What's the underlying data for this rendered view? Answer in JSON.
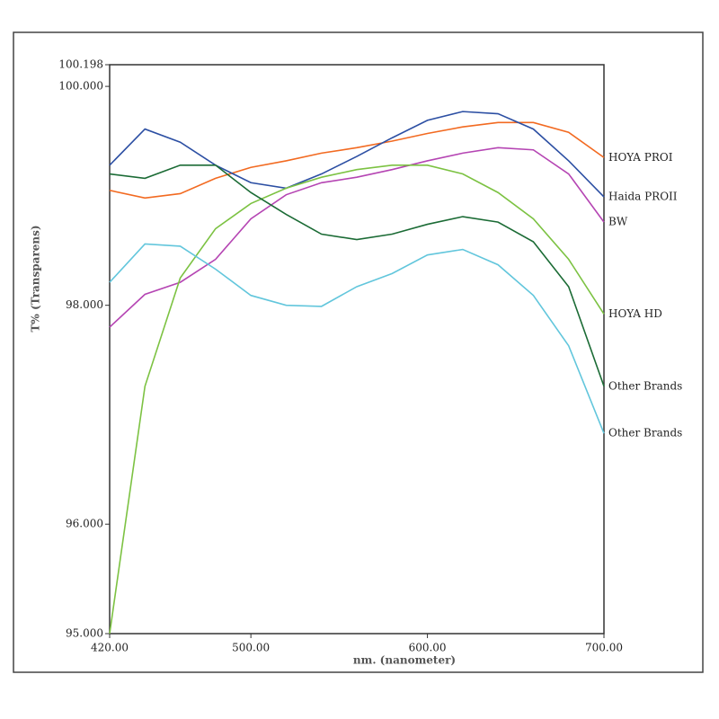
{
  "chart_data": {
    "type": "line",
    "x_label": "nm. (nanometer)",
    "y_label": "T% (Transparens)",
    "x": [
      420,
      440,
      460,
      480,
      500,
      520,
      540,
      560,
      580,
      600,
      620,
      640,
      660,
      680,
      700
    ],
    "xlim": [
      420,
      700
    ],
    "xticks": [
      {
        "value": 420,
        "label": "420.00"
      },
      {
        "value": 500,
        "label": "500.00"
      },
      {
        "value": 600,
        "label": "600.00"
      },
      {
        "value": 700,
        "label": "700.00"
      }
    ],
    "ylim": [
      95,
      100.198
    ],
    "yticks": [
      {
        "value": 95,
        "label": "95.000"
      },
      {
        "value": 96,
        "label": "96.000"
      },
      {
        "value": 98,
        "label": "98.000"
      },
      {
        "value": 100,
        "label": "100.000"
      },
      {
        "value": 100.198,
        "label": "100.198"
      }
    ],
    "series": [
      {
        "name": "HOYA PROI",
        "color": "#f26a21",
        "values": [
          99.05,
          98.98,
          99.02,
          99.16,
          99.26,
          99.32,
          99.39,
          99.44,
          99.5,
          99.57,
          99.63,
          99.67,
          99.67,
          99.58,
          99.35
        ]
      },
      {
        "name": "Haida PROII",
        "color": "#2c4fa3",
        "values": [
          99.28,
          99.61,
          99.49,
          99.28,
          99.12,
          99.07,
          99.2,
          99.36,
          99.53,
          99.69,
          99.77,
          99.75,
          99.61,
          99.32,
          98.99
        ]
      },
      {
        "name": "BW",
        "color": "#b545b3",
        "values": [
          97.8,
          98.1,
          98.21,
          98.42,
          98.79,
          99.01,
          99.12,
          99.17,
          99.24,
          99.32,
          99.39,
          99.44,
          99.42,
          99.2,
          98.76
        ]
      },
      {
        "name": "HOYA HD",
        "color": "#7cc242",
        "values": [
          95.0,
          97.26,
          98.25,
          98.7,
          98.93,
          99.07,
          99.17,
          99.24,
          99.28,
          99.28,
          99.2,
          99.03,
          98.79,
          98.42,
          97.92
        ]
      },
      {
        "name": "Other Brands",
        "color": "#1b6b35",
        "values": [
          99.2,
          99.16,
          99.28,
          99.28,
          99.03,
          98.83,
          98.65,
          98.6,
          98.65,
          98.74,
          98.81,
          98.76,
          98.58,
          98.17,
          97.26
        ]
      },
      {
        "name": "Other Brands",
        "color": "#62c6dc",
        "values": [
          98.21,
          98.56,
          98.54,
          98.33,
          98.09,
          98.0,
          97.99,
          98.17,
          98.29,
          98.46,
          98.51,
          98.37,
          98.09,
          97.63,
          96.83
        ]
      }
    ]
  }
}
